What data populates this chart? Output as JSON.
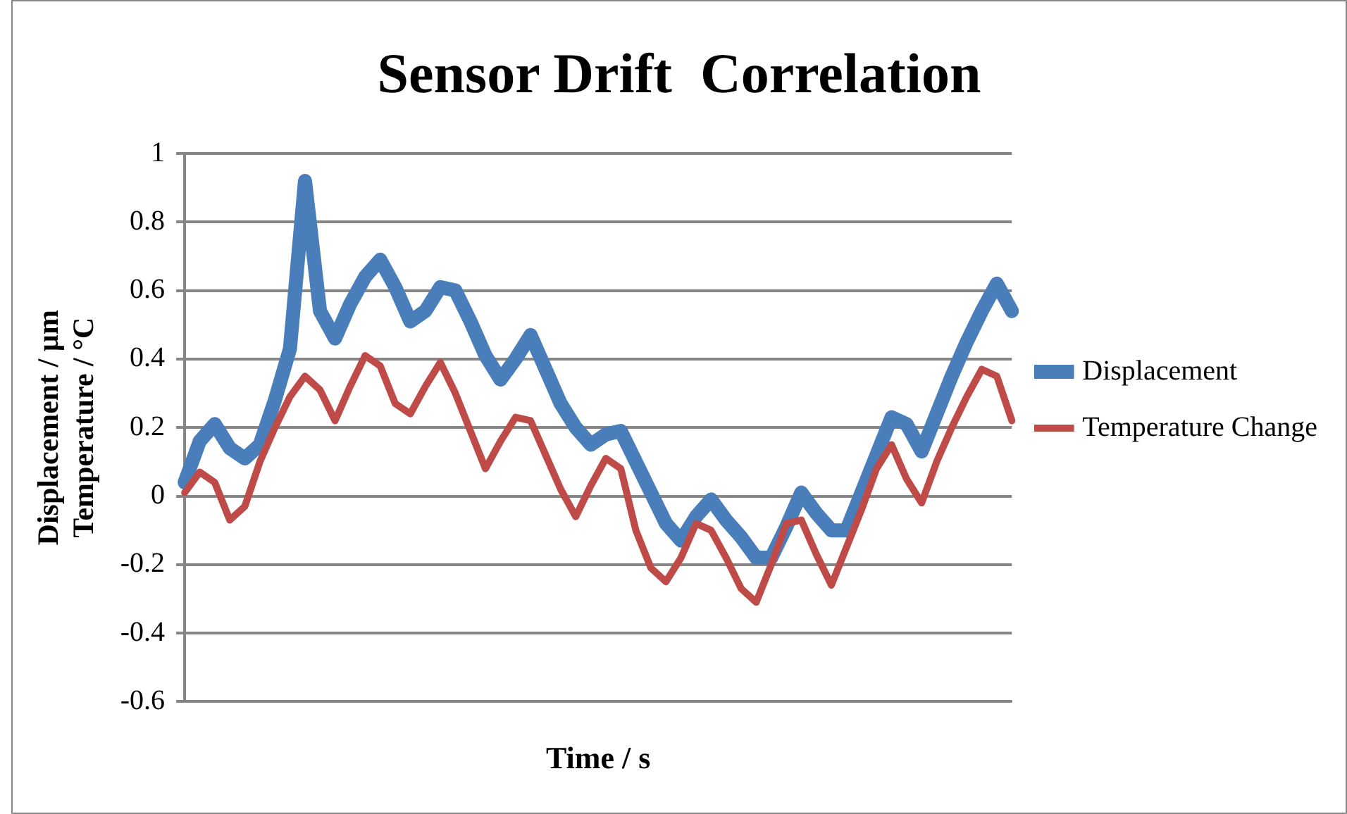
{
  "chart_data": {
    "type": "line",
    "title": "Sensor Drift  Correlation",
    "xlabel": "Time / s",
    "ylabel": "Displacement / µm\nTemperature / °C",
    "categories": [
      null,
      null,
      null,
      null,
      null,
      null,
      null,
      null,
      null,
      null,
      null,
      null,
      null,
      null,
      null,
      null,
      null,
      null,
      null,
      null,
      null,
      null,
      null,
      null,
      null,
      null,
      null,
      null,
      null,
      null,
      null,
      null,
      null,
      null,
      null,
      null,
      null,
      null,
      null,
      null,
      null,
      null,
      null,
      null,
      null,
      null,
      null,
      null,
      null,
      null,
      null,
      null,
      null,
      null,
      null,
      null
    ],
    "series": [
      {
        "name": "Displacement",
        "color": "#4a7ebb",
        "values": [
          0.04,
          0.16,
          0.21,
          0.14,
          0.11,
          0.15,
          0.28,
          0.43,
          0.92,
          0.54,
          0.46,
          0.56,
          0.64,
          0.69,
          0.61,
          0.51,
          0.54,
          0.61,
          0.6,
          0.51,
          0.41,
          0.34,
          0.4,
          0.47,
          0.37,
          0.27,
          0.2,
          0.15,
          0.18,
          0.19,
          0.1,
          0.01,
          -0.08,
          -0.13,
          -0.06,
          -0.01,
          -0.07,
          -0.12,
          -0.18,
          -0.18,
          -0.09,
          0.01,
          -0.05,
          -0.1,
          -0.1,
          0.01,
          0.12,
          0.23,
          0.21,
          0.13,
          0.24,
          0.35,
          0.45,
          0.54,
          0.62,
          0.54
        ]
      },
      {
        "name": "Temperature Change",
        "color": "#be4b48",
        "values": [
          0.01,
          0.07,
          0.04,
          -0.07,
          -0.03,
          0.1,
          0.2,
          0.29,
          0.35,
          0.31,
          0.22,
          0.32,
          0.41,
          0.38,
          0.27,
          0.24,
          0.32,
          0.39,
          0.3,
          0.19,
          0.08,
          0.16,
          0.23,
          0.22,
          0.12,
          0.02,
          -0.06,
          0.03,
          0.11,
          0.08,
          -0.1,
          -0.21,
          -0.25,
          -0.18,
          -0.08,
          -0.1,
          -0.18,
          -0.27,
          -0.31,
          -0.2,
          -0.08,
          -0.07,
          -0.17,
          -0.26,
          -0.15,
          -0.04,
          0.08,
          0.15,
          0.05,
          -0.02,
          0.1,
          0.2,
          0.29,
          0.37,
          0.35,
          0.22
        ]
      }
    ],
    "ylim": [
      -0.6,
      1
    ],
    "yticks": [
      -0.6,
      -0.4,
      -0.2,
      0,
      0.2,
      0.4,
      0.6,
      0.8,
      1
    ],
    "grid": "y",
    "legend": "right",
    "marker": "none",
    "line_style": "solid"
  }
}
